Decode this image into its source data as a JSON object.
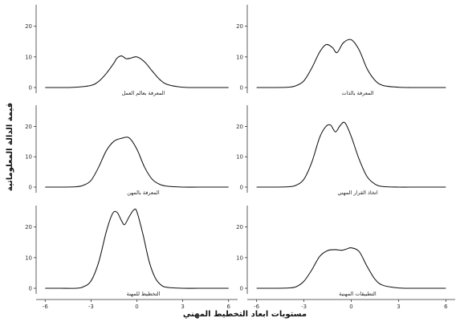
{
  "chart_data": {
    "type": "line",
    "title": "",
    "xlabel": "مستويات ابعاد التخطيط المهني",
    "ylabel": "قيمة الدالة المعلوماتية",
    "xlim": [
      -6,
      6
    ],
    "ylim": [
      0,
      27
    ],
    "x_ticks": [
      -6,
      -3,
      0,
      3,
      6
    ],
    "y_ticks": [
      0,
      10,
      20
    ],
    "grid": false,
    "line_color": "#111111",
    "panels": [
      {
        "label": "المعرفة بعالم العمل",
        "series": [
          {
            "x": [
              -6,
              -5,
              -4,
              -3,
              -2.5,
              -2,
              -1.5,
              -1.3,
              -1,
              -0.7,
              -0.4,
              0,
              0.5,
              1,
              1.5,
              2,
              3,
              4,
              5,
              6
            ],
            "y": [
              0,
              0,
              0.1,
              0.7,
              2,
              4.6,
              8,
              9.6,
              10.3,
              9.4,
              9.6,
              10,
              8.4,
              5.4,
              2.6,
              1,
              0.1,
              0,
              0,
              0
            ]
          }
        ]
      },
      {
        "label": "المعرفة بالذات",
        "series": [
          {
            "x": [
              -6,
              -5,
              -4,
              -3.5,
              -3,
              -2.5,
              -2,
              -1.6,
              -1.2,
              -0.9,
              -0.5,
              0,
              0.5,
              1,
              1.5,
              2,
              3,
              4,
              5,
              6
            ],
            "y": [
              0,
              0,
              0.1,
              0.6,
              2.2,
              6.4,
              11.6,
              14,
              13.1,
              11.4,
              14.6,
              15.6,
              12.3,
              6.2,
              2.4,
              0.7,
              0.1,
              0,
              0,
              0
            ]
          }
        ]
      },
      {
        "label": "المعرفة بالمهن",
        "series": [
          {
            "x": [
              -6,
              -5,
              -4,
              -3.5,
              -3,
              -2.5,
              -2,
              -1.5,
              -1,
              -0.5,
              0,
              0.5,
              1,
              1.5,
              2,
              3,
              4,
              5,
              6
            ],
            "y": [
              0,
              0,
              0.1,
              0.6,
              2.2,
              6.6,
              12,
              15.1,
              16.1,
              16.2,
              12.5,
              6.6,
              2.6,
              0.9,
              0.3,
              0,
              0,
              0,
              0
            ]
          }
        ]
      },
      {
        "label": "اتخاذ القرار المهني",
        "series": [
          {
            "x": [
              -6,
              -5,
              -4,
              -3.5,
              -3,
              -2.5,
              -2,
              -1.6,
              -1.3,
              -1,
              -0.7,
              -0.4,
              0,
              0.5,
              1,
              1.5,
              2,
              3,
              4,
              5,
              6
            ],
            "y": [
              0,
              0,
              0.1,
              0.6,
              2.6,
              8.2,
              16.4,
              20,
              20.4,
              18.2,
              20.3,
              21.2,
              16.7,
              9.2,
              3.5,
              1,
              0.2,
              0,
              0,
              0,
              0
            ]
          }
        ]
      },
      {
        "label": "التخطيط للمهنة",
        "series": [
          {
            "x": [
              -6,
              -5,
              -4,
              -3.5,
              -3,
              -2.5,
              -2,
              -1.6,
              -1.3,
              -1,
              -0.8,
              -0.5,
              -0.2,
              0,
              0.4,
              0.8,
              1.2,
              1.6,
              2,
              3,
              4,
              5,
              6
            ],
            "y": [
              0,
              0,
              0,
              0.5,
              2.4,
              8.5,
              18.5,
              24.3,
              24.8,
              22,
              20.8,
              23.4,
              25.6,
              25,
              17.6,
              8.8,
              3.4,
              1,
              0.3,
              0,
              0,
              0,
              0
            ]
          }
        ]
      },
      {
        "label": "التطبيقات المهنية",
        "series": [
          {
            "x": [
              -6,
              -5,
              -4,
              -3.5,
              -3,
              -2.5,
              -2,
              -1.5,
              -1,
              -0.6,
              -0.3,
              0,
              0.5,
              1,
              1.5,
              2,
              3,
              4,
              5,
              6
            ],
            "y": [
              0,
              0,
              0.1,
              0.5,
              2.3,
              6,
              10.4,
              12.3,
              12.6,
              12.4,
              12.8,
              13.2,
              12,
              7.2,
              3,
              1,
              0.1,
              0,
              0,
              0
            ]
          }
        ]
      }
    ]
  }
}
